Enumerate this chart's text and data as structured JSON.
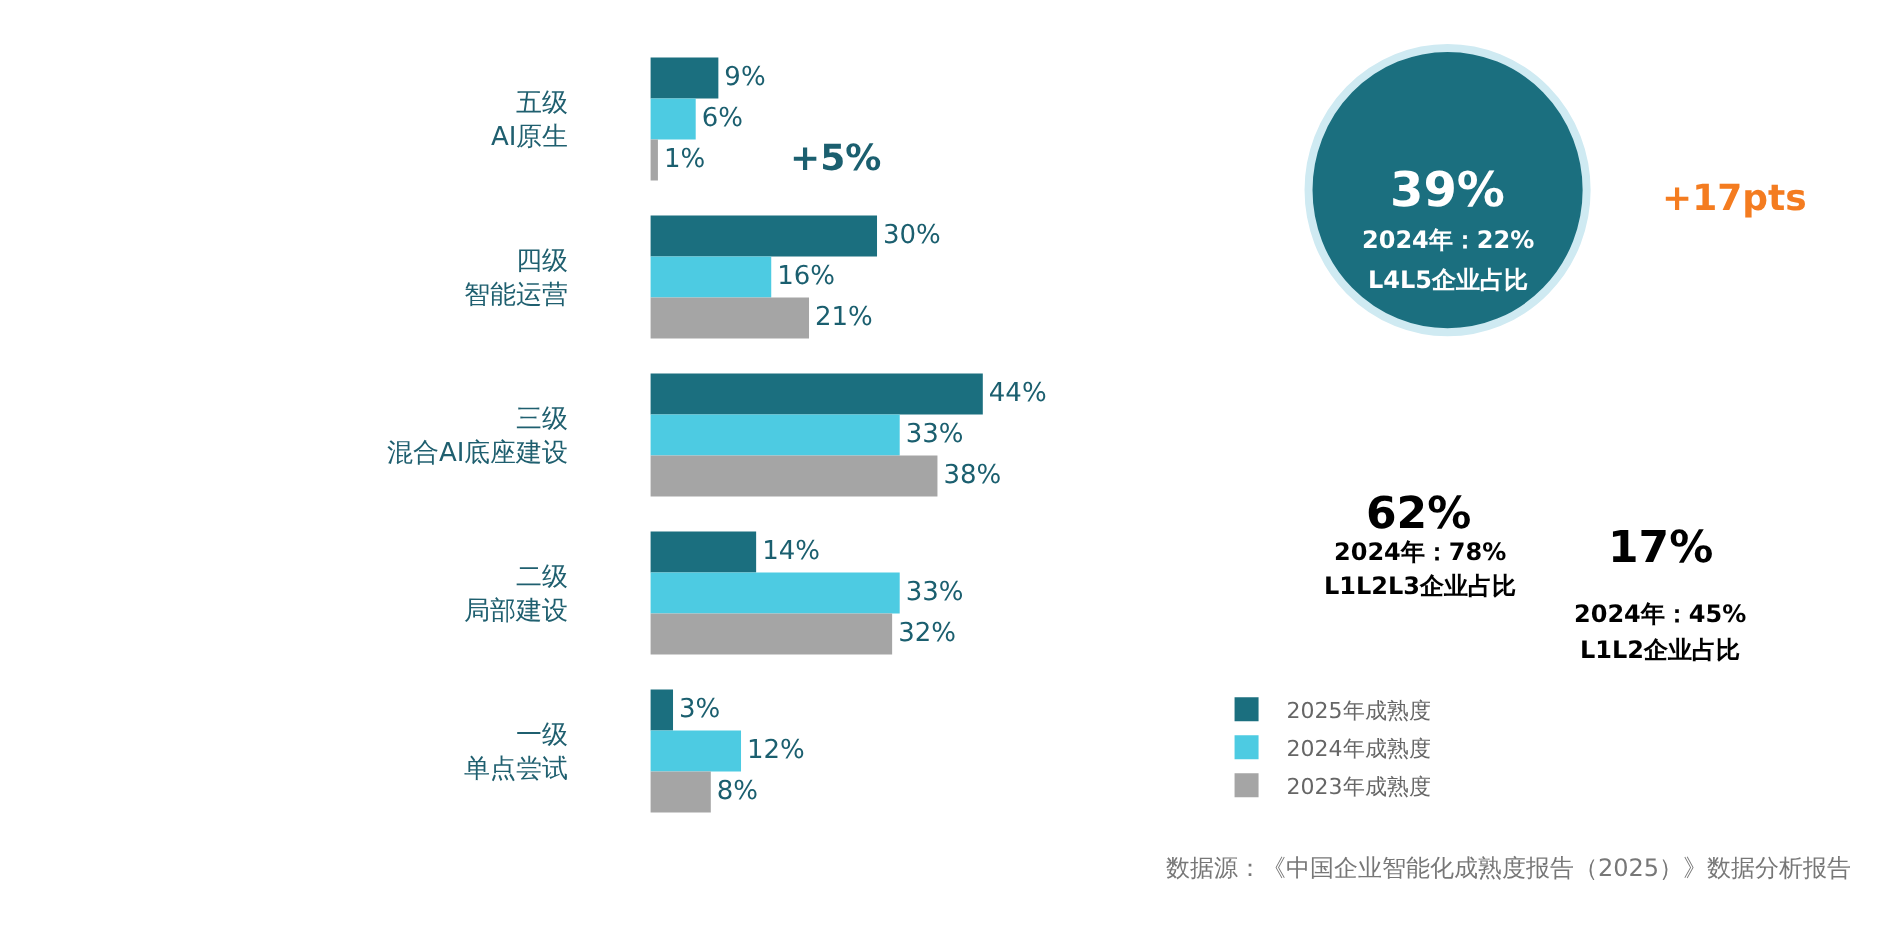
{
  "chart_data": {
    "type": "bar",
    "orientation": "horizontal",
    "categories": [
      "五级AI原生",
      "四级智能运营",
      "三级混合AI底座建设",
      "二级局部建设",
      "一级单点尝试"
    ],
    "series": [
      {
        "name": "2025年成熟度",
        "color": "#1b6f7f",
        "values": [
          9,
          30,
          44,
          14,
          3
        ],
        "value_labels": [
          "9%",
          "30%",
          "44%",
          "14%",
          "3%"
        ]
      },
      {
        "name": "2024年成熟度",
        "color": "#4dcbe2",
        "values": [
          6,
          16,
          33,
          33,
          12
        ],
        "value_labels": [
          "6%",
          "16%",
          "33%",
          "33%",
          "12%"
        ]
      },
      {
        "name": "2023年成熟度",
        "color": "#a5a5a5",
        "values": [
          1,
          21,
          38,
          32,
          8
        ],
        "value_labels": [
          "1%",
          "21%",
          "38%",
          "32%",
          "8%"
        ]
      }
    ],
    "legend": "bottom right",
    "annotations": [
      "+5%",
      "39%",
      "2024年：22%",
      "L4L5企业占比",
      "+17pts",
      "62%",
      "2024年：78%",
      "L1L2L3企业占比",
      "17%",
      "2024年：45%",
      "L1L2企业占比",
      "数据源：《中国企业智能化成熟度报告（2025）》数据分析报告"
    ]
  }
}
